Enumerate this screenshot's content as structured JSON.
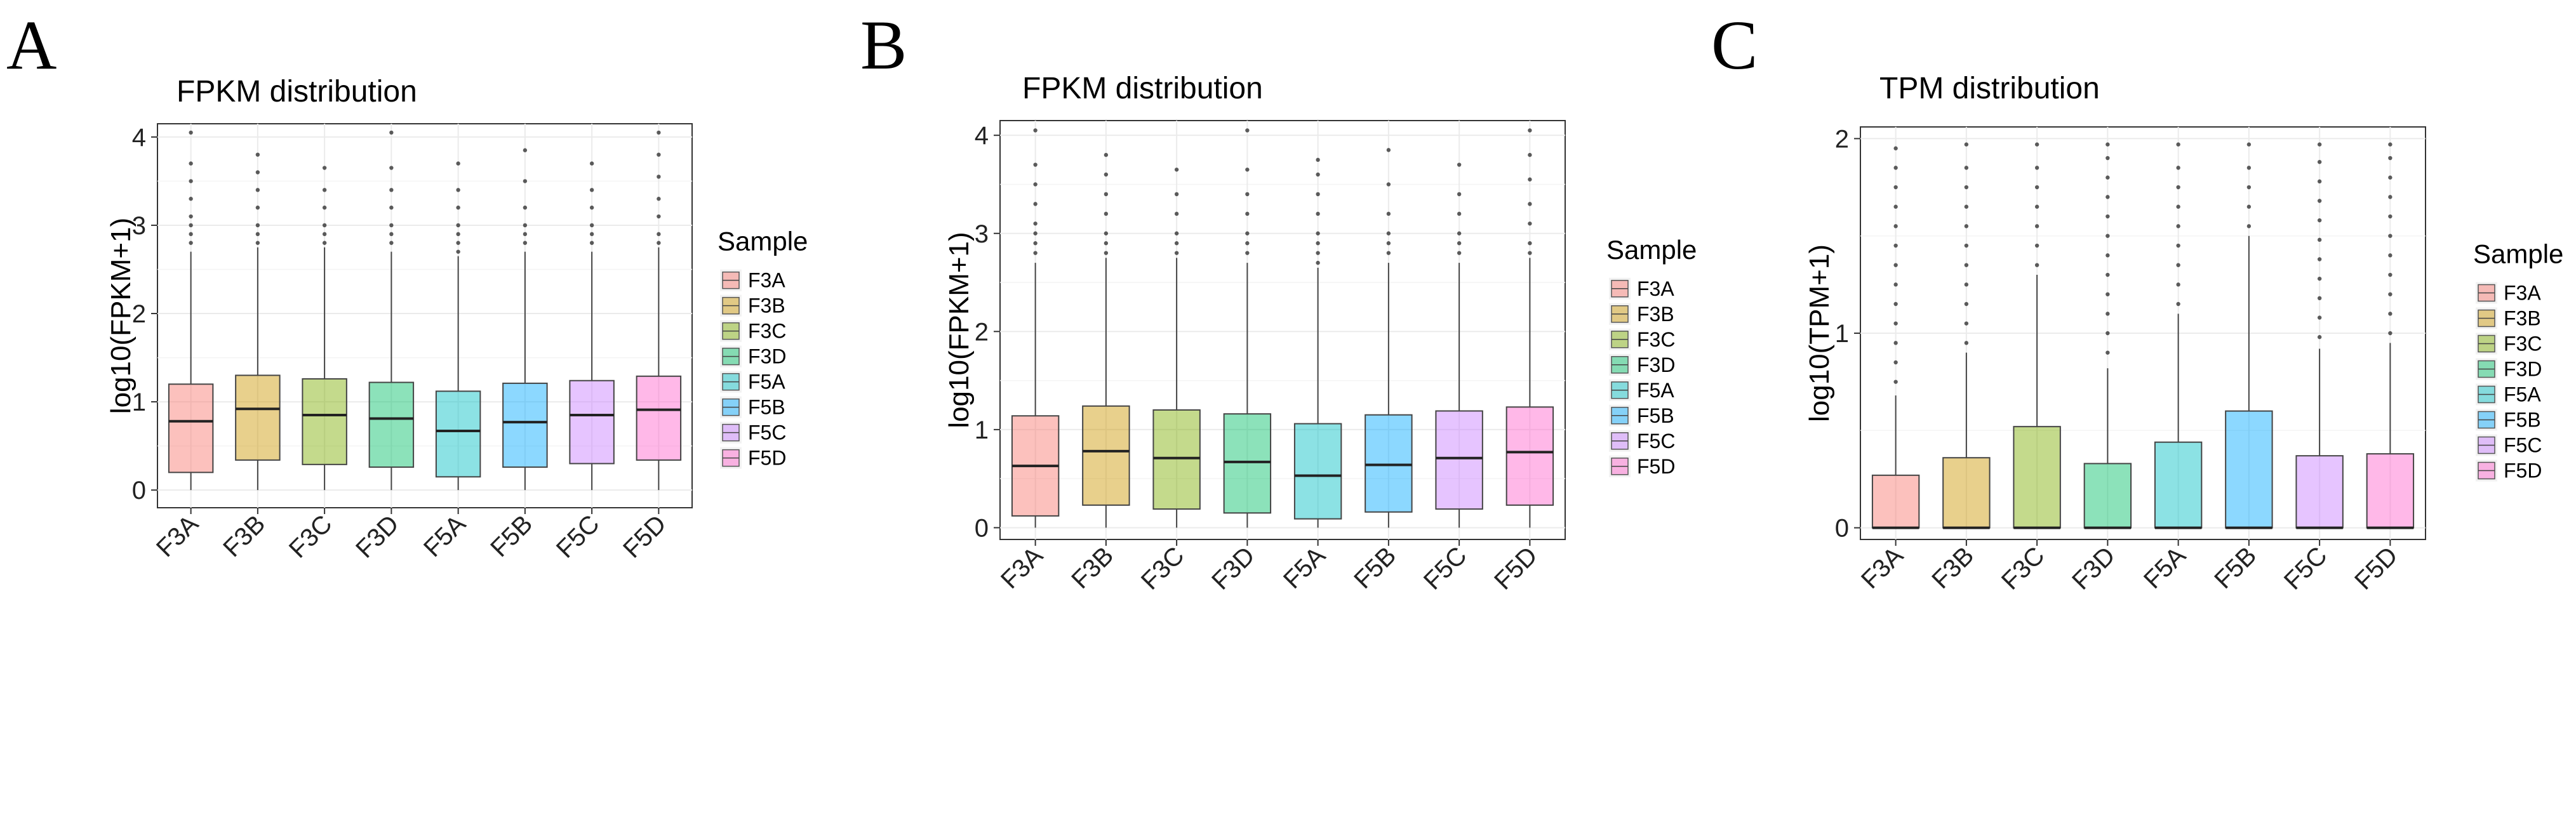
{
  "figure": {
    "panel_letters": [
      "A",
      "B",
      "C"
    ]
  },
  "chart_data": [
    {
      "type": "boxplot",
      "panel": "A",
      "title": "FPKM distribution",
      "ylabel": "log10(FPKM+1)",
      "xlabel": "",
      "ylim": [
        -0.2,
        4.15
      ],
      "yticks": [
        0,
        1,
        2,
        3,
        4
      ],
      "grid": true,
      "legend_title": "Sample",
      "legend_position": "right",
      "categories": [
        "F3A",
        "F3B",
        "F3C",
        "F3D",
        "F5A",
        "F5B",
        "F5C",
        "F5D"
      ],
      "colors": [
        "#F8766D",
        "#CD9600",
        "#7CAE00",
        "#00BE67",
        "#00BFC4",
        "#00A9FF",
        "#C77CFF",
        "#FF61CC"
      ],
      "boxes": [
        {
          "min": 0,
          "q1": 0.2,
          "median": 0.78,
          "q3": 1.2,
          "whisker_high": 2.7,
          "outliers": [
            2.8,
            2.9,
            3.0,
            3.1,
            3.3,
            3.5,
            3.7,
            4.05
          ]
        },
        {
          "min": 0,
          "q1": 0.34,
          "median": 0.92,
          "q3": 1.3,
          "whisker_high": 2.75,
          "outliers": [
            2.8,
            2.9,
            3.0,
            3.2,
            3.4,
            3.6,
            3.8
          ]
        },
        {
          "min": 0,
          "q1": 0.29,
          "median": 0.85,
          "q3": 1.26,
          "whisker_high": 2.75,
          "outliers": [
            2.8,
            2.9,
            3.0,
            3.2,
            3.4,
            3.65
          ]
        },
        {
          "min": 0,
          "q1": 0.26,
          "median": 0.81,
          "q3": 1.22,
          "whisker_high": 2.7,
          "outliers": [
            2.8,
            2.9,
            3.0,
            3.2,
            3.4,
            3.65,
            4.05
          ]
        },
        {
          "min": 0,
          "q1": 0.15,
          "median": 0.67,
          "q3": 1.12,
          "whisker_high": 2.65,
          "outliers": [
            2.7,
            2.8,
            2.9,
            3.0,
            3.2,
            3.4,
            3.7
          ]
        },
        {
          "min": 0,
          "q1": 0.26,
          "median": 0.77,
          "q3": 1.21,
          "whisker_high": 2.7,
          "outliers": [
            2.8,
            2.9,
            3.0,
            3.2,
            3.5,
            3.85
          ]
        },
        {
          "min": 0,
          "q1": 0.3,
          "median": 0.85,
          "q3": 1.24,
          "whisker_high": 2.7,
          "outliers": [
            2.8,
            2.9,
            3.0,
            3.2,
            3.4,
            3.7
          ]
        },
        {
          "min": 0,
          "q1": 0.34,
          "median": 0.91,
          "q3": 1.29,
          "whisker_high": 2.75,
          "outliers": [
            2.8,
            2.9,
            3.1,
            3.3,
            3.55,
            3.8,
            4.05
          ]
        }
      ]
    },
    {
      "type": "boxplot",
      "panel": "B",
      "title": "FPKM distribution",
      "ylabel": "log10(FPKM+1)",
      "xlabel": "",
      "ylim": [
        -0.12,
        4.15
      ],
      "yticks": [
        0,
        1,
        2,
        3,
        4
      ],
      "grid": true,
      "legend_title": "Sample",
      "legend_position": "right",
      "categories": [
        "F3A",
        "F3B",
        "F3C",
        "F3D",
        "F5A",
        "F5B",
        "F5C",
        "F5D"
      ],
      "colors": [
        "#F8766D",
        "#CD9600",
        "#7CAE00",
        "#00BE67",
        "#00BFC4",
        "#00A9FF",
        "#C77CFF",
        "#FF61CC"
      ],
      "boxes": [
        {
          "min": 0,
          "q1": 0.12,
          "median": 0.63,
          "q3": 1.14,
          "whisker_high": 2.7,
          "outliers": [
            2.8,
            2.9,
            3.0,
            3.1,
            3.3,
            3.5,
            3.7,
            4.05
          ]
        },
        {
          "min": 0,
          "q1": 0.23,
          "median": 0.78,
          "q3": 1.24,
          "whisker_high": 2.75,
          "outliers": [
            2.8,
            2.9,
            3.0,
            3.2,
            3.4,
            3.6,
            3.8
          ]
        },
        {
          "min": 0,
          "q1": 0.19,
          "median": 0.71,
          "q3": 1.2,
          "whisker_high": 2.75,
          "outliers": [
            2.8,
            2.9,
            3.0,
            3.2,
            3.4,
            3.65
          ]
        },
        {
          "min": 0,
          "q1": 0.15,
          "median": 0.67,
          "q3": 1.16,
          "whisker_high": 2.7,
          "outliers": [
            2.8,
            2.9,
            3.0,
            3.2,
            3.4,
            3.65,
            4.05
          ]
        },
        {
          "min": 0,
          "q1": 0.09,
          "median": 0.53,
          "q3": 1.06,
          "whisker_high": 2.65,
          "outliers": [
            2.7,
            2.8,
            2.9,
            3.0,
            3.2,
            3.4,
            3.6,
            3.75
          ]
        },
        {
          "min": 0,
          "q1": 0.16,
          "median": 0.64,
          "q3": 1.15,
          "whisker_high": 2.7,
          "outliers": [
            2.8,
            2.9,
            3.0,
            3.2,
            3.5,
            3.85
          ]
        },
        {
          "min": 0,
          "q1": 0.19,
          "median": 0.71,
          "q3": 1.19,
          "whisker_high": 2.7,
          "outliers": [
            2.8,
            2.9,
            3.0,
            3.2,
            3.4,
            3.7
          ]
        },
        {
          "min": 0,
          "q1": 0.23,
          "median": 0.77,
          "q3": 1.23,
          "whisker_high": 2.75,
          "outliers": [
            2.8,
            2.9,
            3.1,
            3.3,
            3.55,
            3.8,
            4.05
          ]
        }
      ]
    },
    {
      "type": "boxplot",
      "panel": "C",
      "title": "TPM distribution",
      "ylabel": "log10(TPM+1)",
      "xlabel": "",
      "ylim": [
        -0.06,
        2.06
      ],
      "yticks": [
        0,
        1,
        2
      ],
      "grid": true,
      "legend_title": "Sample",
      "legend_position": "right",
      "categories": [
        "F3A",
        "F3B",
        "F3C",
        "F3D",
        "F5A",
        "F5B",
        "F5C",
        "F5D"
      ],
      "colors": [
        "#F8766D",
        "#CD9600",
        "#7CAE00",
        "#00BE67",
        "#00BFC4",
        "#00A9FF",
        "#C77CFF",
        "#FF61CC"
      ],
      "boxes": [
        {
          "min": 0,
          "q1": 0,
          "median": 0,
          "q3": 0.27,
          "whisker_high": 0.68,
          "outliers": [
            0.75,
            0.85,
            0.95,
            1.05,
            1.15,
            1.25,
            1.35,
            1.45,
            1.55,
            1.65,
            1.75,
            1.85,
            1.95
          ]
        },
        {
          "min": 0,
          "q1": 0,
          "median": 0,
          "q3": 0.36,
          "whisker_high": 0.9,
          "outliers": [
            0.95,
            1.05,
            1.15,
            1.25,
            1.35,
            1.45,
            1.55,
            1.65,
            1.75,
            1.85,
            1.97
          ]
        },
        {
          "min": 0,
          "q1": 0,
          "median": 0,
          "q3": 0.52,
          "whisker_high": 1.3,
          "outliers": [
            1.35,
            1.45,
            1.55,
            1.65,
            1.75,
            1.85,
            1.97
          ]
        },
        {
          "min": 0,
          "q1": 0,
          "median": 0,
          "q3": 0.33,
          "whisker_high": 0.82,
          "outliers": [
            0.9,
            1.0,
            1.1,
            1.2,
            1.3,
            1.4,
            1.5,
            1.6,
            1.7,
            1.8,
            1.9,
            1.97
          ]
        },
        {
          "min": 0,
          "q1": 0,
          "median": 0,
          "q3": 0.44,
          "whisker_high": 1.1,
          "outliers": [
            1.15,
            1.25,
            1.35,
            1.45,
            1.55,
            1.65,
            1.75,
            1.85,
            1.97
          ]
        },
        {
          "min": 0,
          "q1": 0,
          "median": 0,
          "q3": 0.6,
          "whisker_high": 1.5,
          "outliers": [
            1.55,
            1.65,
            1.75,
            1.85,
            1.97
          ]
        },
        {
          "min": 0,
          "q1": 0,
          "median": 0,
          "q3": 0.37,
          "whisker_high": 0.92,
          "outliers": [
            0.98,
            1.08,
            1.18,
            1.28,
            1.38,
            1.48,
            1.58,
            1.68,
            1.78,
            1.88,
            1.97
          ]
        },
        {
          "min": 0,
          "q1": 0,
          "median": 0,
          "q3": 0.38,
          "whisker_high": 0.95,
          "outliers": [
            1.0,
            1.1,
            1.2,
            1.3,
            1.4,
            1.5,
            1.6,
            1.7,
            1.8,
            1.9,
            1.97
          ]
        }
      ]
    }
  ]
}
